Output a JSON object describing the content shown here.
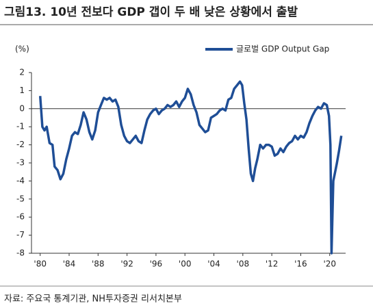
{
  "chart_data": {
    "type": "line",
    "title": "그림13. 10년 전보다 GDP 갭이 두 배 낮은 상황에서 출발",
    "y_unit": "(%)",
    "source": "자료: 주요국 통계기관, NH투자증권 리서치본부",
    "x": [
      1980.0,
      1980.3,
      1980.6,
      1980.9,
      1981.3,
      1981.7,
      1982.0,
      1982.4,
      1982.8,
      1983.2,
      1983.6,
      1984.0,
      1984.4,
      1984.8,
      1985.2,
      1985.6,
      1986.0,
      1986.4,
      1986.8,
      1987.2,
      1987.6,
      1988.0,
      1988.4,
      1988.8,
      1989.2,
      1989.6,
      1990.0,
      1990.4,
      1990.8,
      1991.2,
      1991.6,
      1992.0,
      1992.4,
      1992.8,
      1993.2,
      1993.6,
      1994.0,
      1994.4,
      1994.8,
      1995.2,
      1995.6,
      1996.0,
      1996.4,
      1996.8,
      1997.2,
      1997.6,
      1998.0,
      1998.4,
      1998.8,
      1999.2,
      1999.6,
      2000.0,
      2000.4,
      2000.8,
      2001.2,
      2001.6,
      2002.0,
      2002.4,
      2002.8,
      2003.2,
      2003.6,
      2004.0,
      2004.4,
      2004.8,
      2005.2,
      2005.6,
      2006.0,
      2006.4,
      2006.8,
      2007.2,
      2007.6,
      2007.9,
      2008.2,
      2008.5,
      2008.8,
      2009.1,
      2009.4,
      2009.7,
      2010.0,
      2010.4,
      2010.8,
      2011.2,
      2011.6,
      2012.0,
      2012.4,
      2012.8,
      2013.2,
      2013.6,
      2014.0,
      2014.4,
      2014.8,
      2015.2,
      2015.6,
      2016.0,
      2016.4,
      2016.8,
      2017.2,
      2017.6,
      2018.0,
      2018.4,
      2018.8,
      2019.2,
      2019.6,
      2019.9,
      2020.1,
      2020.25,
      2020.5,
      2020.75,
      2021.0,
      2021.3,
      2021.6
    ],
    "series": [
      {
        "name": "글로벌 GDP Output Gap",
        "color": "#1f4e96",
        "values": [
          0.7,
          -1.0,
          -1.2,
          -1.0,
          -1.9,
          -2.0,
          -3.2,
          -3.4,
          -3.9,
          -3.6,
          -2.8,
          -2.2,
          -1.5,
          -1.3,
          -1.4,
          -0.9,
          -0.2,
          -0.6,
          -1.3,
          -1.7,
          -1.2,
          -0.2,
          0.2,
          0.6,
          0.5,
          0.6,
          0.4,
          0.5,
          0.1,
          -0.9,
          -1.5,
          -1.8,
          -1.9,
          -1.7,
          -1.5,
          -1.8,
          -1.9,
          -1.2,
          -0.6,
          -0.3,
          -0.1,
          0.0,
          -0.3,
          -0.1,
          0.0,
          0.2,
          0.1,
          0.2,
          0.4,
          0.1,
          0.4,
          0.6,
          1.1,
          0.8,
          0.2,
          -0.2,
          -0.9,
          -1.1,
          -1.3,
          -1.2,
          -0.5,
          -0.4,
          -0.3,
          -0.1,
          0.0,
          -0.1,
          0.5,
          0.6,
          1.1,
          1.3,
          1.5,
          1.3,
          0.3,
          -0.6,
          -2.2,
          -3.6,
          -4.0,
          -3.3,
          -2.8,
          -2.0,
          -2.2,
          -2.0,
          -2.0,
          -2.1,
          -2.6,
          -2.5,
          -2.2,
          -2.4,
          -2.1,
          -1.9,
          -1.8,
          -1.5,
          -1.7,
          -1.5,
          -1.6,
          -1.3,
          -0.8,
          -0.4,
          -0.1,
          0.1,
          0.0,
          0.3,
          0.2,
          -0.4,
          -2.0,
          -8.0,
          -4.0,
          -3.5,
          -3.0,
          -2.3,
          -1.5
        ]
      }
    ],
    "xlim": [
      1978.8,
      2022.2
    ],
    "xticks": [
      {
        "value": 1980,
        "label": "'80"
      },
      {
        "value": 1984,
        "label": "'84"
      },
      {
        "value": 1988,
        "label": "'88"
      },
      {
        "value": 1992,
        "label": "'92"
      },
      {
        "value": 1996,
        "label": "'96"
      },
      {
        "value": 2000,
        "label": "'00"
      },
      {
        "value": 2004,
        "label": "'04"
      },
      {
        "value": 2008,
        "label": "'08"
      },
      {
        "value": 2012,
        "label": "'12"
      },
      {
        "value": 2016,
        "label": "'16"
      },
      {
        "value": 2020,
        "label": "'20"
      }
    ],
    "ylim": [
      -8,
      2
    ],
    "yticks": [
      -8,
      -7,
      -6,
      -5,
      -4,
      -3,
      -2,
      -1,
      0,
      1,
      2
    ],
    "legend": "top-right"
  }
}
